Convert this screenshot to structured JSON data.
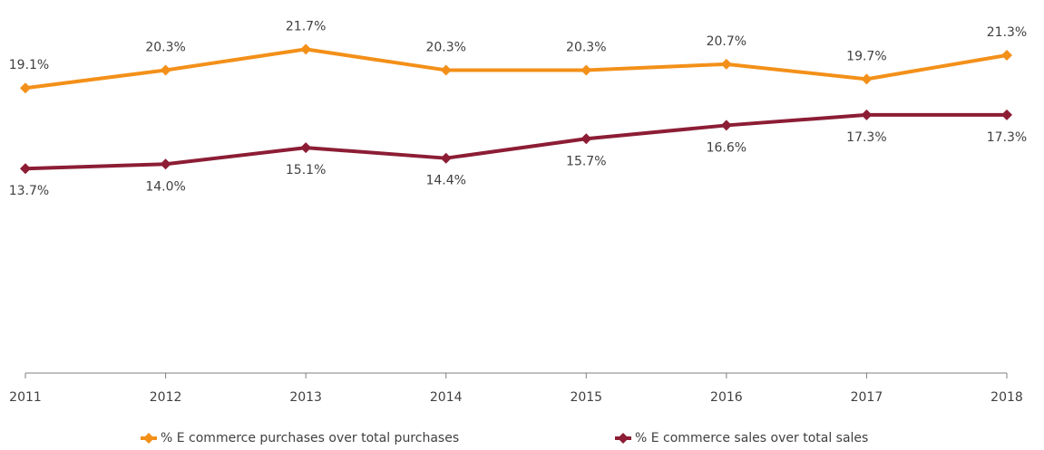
{
  "chart_data": {
    "type": "line",
    "categories": [
      "2011",
      "2012",
      "2013",
      "2014",
      "2015",
      "2016",
      "2017",
      "2018"
    ],
    "series": [
      {
        "name": "% E commerce purchases over total purchases",
        "color": "#f39019",
        "values": [
          19.1,
          20.3,
          21.7,
          20.3,
          20.3,
          20.7,
          19.7,
          21.3
        ],
        "value_labels": [
          "19.1%",
          "20.3%",
          "21.7%",
          "20.3%",
          "20.3%",
          "20.7%",
          "19.7%",
          "21.3%"
        ]
      },
      {
        "name": "% E commerce sales over total sales",
        "color": "#8c1d35",
        "values": [
          13.7,
          14.0,
          15.1,
          14.4,
          15.7,
          16.6,
          17.3,
          17.3
        ],
        "value_labels": [
          "13.7%",
          "14.0%",
          "15.1%",
          "14.4%",
          "15.7%",
          "16.6%",
          "17.3%",
          "17.3%"
        ]
      }
    ],
    "ylim": [
      0,
      25
    ],
    "legend": "bottom"
  }
}
